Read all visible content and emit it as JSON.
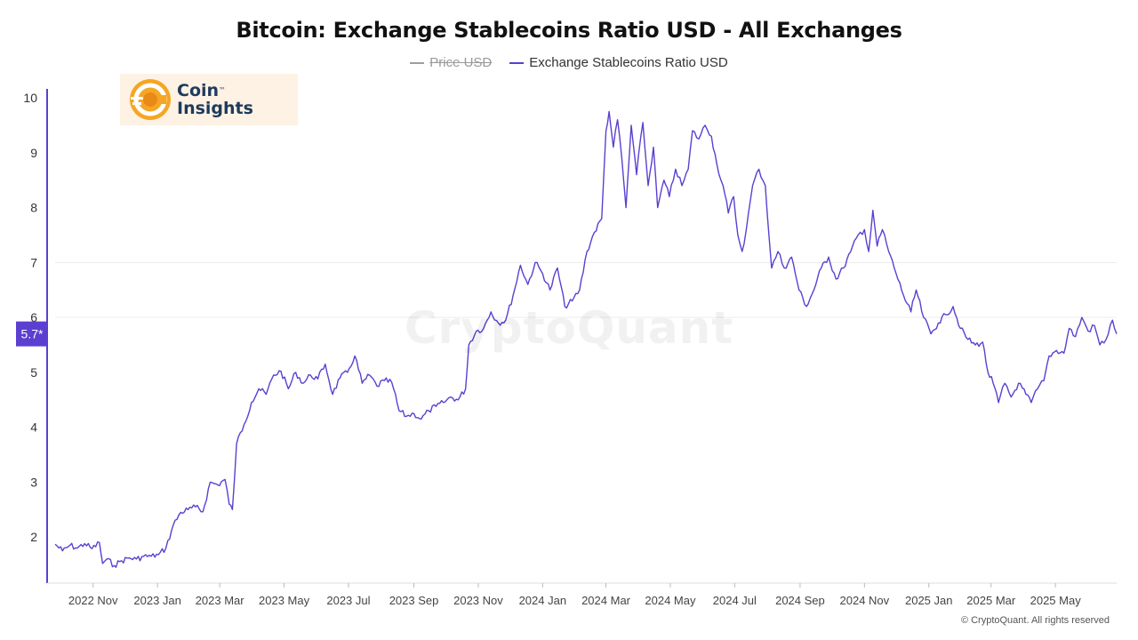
{
  "chart_data": {
    "type": "line",
    "title": "Bitcoin: Exchange Stablecoins Ratio USD - All Exchanges",
    "legend": [
      {
        "name": "Price USD",
        "color": "#9e9e9e",
        "hidden": true
      },
      {
        "name": "Exchange Stablecoins Ratio USD",
        "color": "#5b3fd1",
        "hidden": false
      }
    ],
    "ylim": [
      1,
      10
    ],
    "y_ticks": [
      2,
      3,
      4,
      5,
      6,
      7,
      8,
      9,
      10
    ],
    "x_range": [
      "2022-09-26",
      "2025-06-28"
    ],
    "x_ticks": [
      {
        "date": "2022-11-01",
        "label": "2022 Nov"
      },
      {
        "date": "2023-01-01",
        "label": "2023 Jan"
      },
      {
        "date": "2023-03-01",
        "label": "2023 Mar"
      },
      {
        "date": "2023-05-01",
        "label": "2023 May"
      },
      {
        "date": "2023-07-01",
        "label": "2023 Jul"
      },
      {
        "date": "2023-09-01",
        "label": "2023 Sep"
      },
      {
        "date": "2023-11-01",
        "label": "2023 Nov"
      },
      {
        "date": "2024-01-01",
        "label": "2024 Jan"
      },
      {
        "date": "2024-03-01",
        "label": "2024 Mar"
      },
      {
        "date": "2024-05-01",
        "label": "2024 May"
      },
      {
        "date": "2024-07-01",
        "label": "2024 Jul"
      },
      {
        "date": "2024-09-01",
        "label": "2024 Sep"
      },
      {
        "date": "2024-11-01",
        "label": "2024 Nov"
      },
      {
        "date": "2025-01-01",
        "label": "2025 Jan"
      },
      {
        "date": "2025-03-01",
        "label": "2025 Mar"
      },
      {
        "date": "2025-05-01",
        "label": "2025 May"
      }
    ],
    "current_value_label": "5.7*",
    "current_value": 5.7,
    "grid": "horizontal",
    "series": [
      {
        "name": "Exchange Stablecoins Ratio USD",
        "color": "#5b3fd1",
        "points": [
          [
            "2022-09-26",
            1.87
          ],
          [
            "2022-10-03",
            1.75
          ],
          [
            "2022-10-10",
            1.85
          ],
          [
            "2022-10-17",
            1.8
          ],
          [
            "2022-10-24",
            1.88
          ],
          [
            "2022-10-31",
            1.79
          ],
          [
            "2022-11-07",
            1.9
          ],
          [
            "2022-11-10",
            1.52
          ],
          [
            "2022-11-14",
            1.6
          ],
          [
            "2022-11-21",
            1.48
          ],
          [
            "2022-11-28",
            1.57
          ],
          [
            "2022-12-05",
            1.62
          ],
          [
            "2022-12-12",
            1.6
          ],
          [
            "2022-12-19",
            1.65
          ],
          [
            "2022-12-26",
            1.65
          ],
          [
            "2023-01-02",
            1.68
          ],
          [
            "2023-01-09",
            1.8
          ],
          [
            "2023-01-16",
            2.22
          ],
          [
            "2023-01-23",
            2.45
          ],
          [
            "2023-01-30",
            2.5
          ],
          [
            "2023-02-06",
            2.55
          ],
          [
            "2023-02-13",
            2.46
          ],
          [
            "2023-02-20",
            3.0
          ],
          [
            "2023-02-27",
            2.95
          ],
          [
            "2023-03-06",
            3.05
          ],
          [
            "2023-03-10",
            2.6
          ],
          [
            "2023-03-13",
            2.5
          ],
          [
            "2023-03-17",
            3.7
          ],
          [
            "2023-03-24",
            4.05
          ],
          [
            "2023-03-31",
            4.45
          ],
          [
            "2023-04-07",
            4.7
          ],
          [
            "2023-04-14",
            4.6
          ],
          [
            "2023-04-21",
            4.95
          ],
          [
            "2023-04-28",
            5.02
          ],
          [
            "2023-05-05",
            4.7
          ],
          [
            "2023-05-12",
            5.0
          ],
          [
            "2023-05-19",
            4.8
          ],
          [
            "2023-05-26",
            4.95
          ],
          [
            "2023-06-02",
            4.88
          ],
          [
            "2023-06-09",
            5.15
          ],
          [
            "2023-06-16",
            4.6
          ],
          [
            "2023-06-23",
            4.9
          ],
          [
            "2023-06-30",
            5.0
          ],
          [
            "2023-07-07",
            5.3
          ],
          [
            "2023-07-14",
            4.8
          ],
          [
            "2023-07-21",
            4.95
          ],
          [
            "2023-07-28",
            4.75
          ],
          [
            "2023-08-04",
            4.85
          ],
          [
            "2023-08-11",
            4.82
          ],
          [
            "2023-08-18",
            4.3
          ],
          [
            "2023-08-25",
            4.2
          ],
          [
            "2023-09-01",
            4.25
          ],
          [
            "2023-09-08",
            4.15
          ],
          [
            "2023-09-15",
            4.3
          ],
          [
            "2023-09-22",
            4.38
          ],
          [
            "2023-09-29",
            4.45
          ],
          [
            "2023-10-06",
            4.55
          ],
          [
            "2023-10-13",
            4.5
          ],
          [
            "2023-10-20",
            4.7
          ],
          [
            "2023-10-23",
            5.5
          ],
          [
            "2023-10-30",
            5.75
          ],
          [
            "2023-11-06",
            5.8
          ],
          [
            "2023-11-13",
            6.1
          ],
          [
            "2023-11-20",
            5.9
          ],
          [
            "2023-11-27",
            5.95
          ],
          [
            "2023-12-04",
            6.4
          ],
          [
            "2023-12-11",
            6.95
          ],
          [
            "2023-12-18",
            6.6
          ],
          [
            "2023-12-25",
            7.0
          ],
          [
            "2024-01-01",
            6.8
          ],
          [
            "2024-01-08",
            6.5
          ],
          [
            "2024-01-15",
            6.9
          ],
          [
            "2024-01-22",
            6.2
          ],
          [
            "2024-01-29",
            6.3
          ],
          [
            "2024-02-05",
            6.5
          ],
          [
            "2024-02-12",
            7.2
          ],
          [
            "2024-02-19",
            7.55
          ],
          [
            "2024-02-26",
            7.8
          ],
          [
            "2024-03-01",
            9.4
          ],
          [
            "2024-03-04",
            9.75
          ],
          [
            "2024-03-08",
            9.1
          ],
          [
            "2024-03-12",
            9.6
          ],
          [
            "2024-03-16",
            8.9
          ],
          [
            "2024-03-20",
            8.0
          ],
          [
            "2024-03-25",
            9.5
          ],
          [
            "2024-03-30",
            8.6
          ],
          [
            "2024-04-05",
            9.55
          ],
          [
            "2024-04-10",
            8.4
          ],
          [
            "2024-04-15",
            9.1
          ],
          [
            "2024-04-19",
            8.0
          ],
          [
            "2024-04-25",
            8.5
          ],
          [
            "2024-04-30",
            8.2
          ],
          [
            "2024-05-06",
            8.7
          ],
          [
            "2024-05-12",
            8.4
          ],
          [
            "2024-05-18",
            8.7
          ],
          [
            "2024-05-22",
            9.4
          ],
          [
            "2024-05-28",
            9.25
          ],
          [
            "2024-06-03",
            9.5
          ],
          [
            "2024-06-09",
            9.3
          ],
          [
            "2024-06-14",
            8.8
          ],
          [
            "2024-06-20",
            8.4
          ],
          [
            "2024-06-25",
            7.9
          ],
          [
            "2024-06-30",
            8.2
          ],
          [
            "2024-07-04",
            7.5
          ],
          [
            "2024-07-08",
            7.2
          ],
          [
            "2024-07-12",
            7.6
          ],
          [
            "2024-07-18",
            8.4
          ],
          [
            "2024-07-24",
            8.7
          ],
          [
            "2024-07-30",
            8.4
          ],
          [
            "2024-08-05",
            6.9
          ],
          [
            "2024-08-11",
            7.2
          ],
          [
            "2024-08-17",
            6.9
          ],
          [
            "2024-08-24",
            7.1
          ],
          [
            "2024-08-31",
            6.5
          ],
          [
            "2024-09-07",
            6.2
          ],
          [
            "2024-09-14",
            6.5
          ],
          [
            "2024-09-21",
            6.9
          ],
          [
            "2024-09-28",
            7.1
          ],
          [
            "2024-10-05",
            6.7
          ],
          [
            "2024-10-12",
            6.9
          ],
          [
            "2024-10-19",
            7.2
          ],
          [
            "2024-10-26",
            7.5
          ],
          [
            "2024-11-01",
            7.6
          ],
          [
            "2024-11-05",
            7.2
          ],
          [
            "2024-11-09",
            7.95
          ],
          [
            "2024-11-13",
            7.3
          ],
          [
            "2024-11-18",
            7.6
          ],
          [
            "2024-11-24",
            7.2
          ],
          [
            "2024-12-01",
            6.8
          ],
          [
            "2024-12-08",
            6.4
          ],
          [
            "2024-12-15",
            6.1
          ],
          [
            "2024-12-20",
            6.5
          ],
          [
            "2024-12-27",
            6.0
          ],
          [
            "2025-01-03",
            5.7
          ],
          [
            "2025-01-10",
            5.9
          ],
          [
            "2025-01-17",
            6.05
          ],
          [
            "2025-01-24",
            6.2
          ],
          [
            "2025-01-31",
            5.8
          ],
          [
            "2025-02-07",
            5.6
          ],
          [
            "2025-02-14",
            5.5
          ],
          [
            "2025-02-21",
            5.55
          ],
          [
            "2025-02-26",
            5.0
          ],
          [
            "2025-03-03",
            4.8
          ],
          [
            "2025-03-08",
            4.45
          ],
          [
            "2025-03-14",
            4.8
          ],
          [
            "2025-03-20",
            4.55
          ],
          [
            "2025-03-27",
            4.8
          ],
          [
            "2025-04-03",
            4.6
          ],
          [
            "2025-04-08",
            4.45
          ],
          [
            "2025-04-14",
            4.7
          ],
          [
            "2025-04-20",
            4.85
          ],
          [
            "2025-04-25",
            5.3
          ],
          [
            "2025-05-02",
            5.4
          ],
          [
            "2025-05-09",
            5.35
          ],
          [
            "2025-05-14",
            5.8
          ],
          [
            "2025-05-20",
            5.65
          ],
          [
            "2025-05-26",
            6.0
          ],
          [
            "2025-06-01",
            5.75
          ],
          [
            "2025-06-07",
            5.85
          ],
          [
            "2025-06-12",
            5.5
          ],
          [
            "2025-06-18",
            5.6
          ],
          [
            "2025-06-24",
            5.95
          ],
          [
            "2025-06-28",
            5.7
          ]
        ]
      }
    ]
  },
  "logo": {
    "line1": "Coin",
    "tm": "™",
    "line2": "Insights"
  },
  "watermark": "CryptoQuant",
  "copyright": "© CryptoQuant. All rights reserved"
}
